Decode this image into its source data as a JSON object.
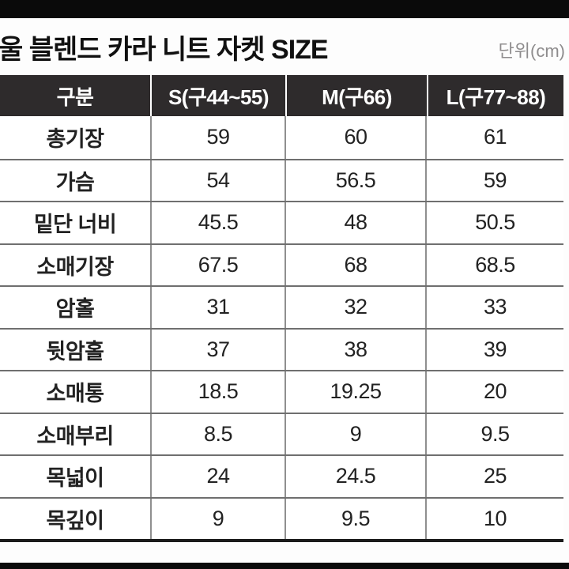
{
  "header": {
    "title": "울 블렌드 카라 니트 자켓 SIZE",
    "unit_label": "단위(cm)"
  },
  "chart_data": {
    "type": "table",
    "title": "울 블렌드 카라 니트 자켓 SIZE",
    "unit": "cm",
    "columns": [
      "구분",
      "S(구44~55)",
      "M(구66)",
      "L(구77~88)"
    ],
    "rows": [
      {
        "label": "총기장",
        "values": [
          "59",
          "60",
          "61"
        ]
      },
      {
        "label": "가슴",
        "values": [
          "54",
          "56.5",
          "59"
        ]
      },
      {
        "label": "밑단 너비",
        "values": [
          "45.5",
          "48",
          "50.5"
        ]
      },
      {
        "label": "소매기장",
        "values": [
          "67.5",
          "68",
          "68.5"
        ]
      },
      {
        "label": "암홀",
        "values": [
          "31",
          "32",
          "33"
        ]
      },
      {
        "label": "뒷암홀",
        "values": [
          "37",
          "38",
          "39"
        ]
      },
      {
        "label": "소매통",
        "values": [
          "18.5",
          "19.25",
          "20"
        ]
      },
      {
        "label": "소매부리",
        "values": [
          "8.5",
          "9",
          "9.5"
        ]
      },
      {
        "label": "목넓이",
        "values": [
          "24",
          "24.5",
          "25"
        ]
      },
      {
        "label": "목깊이",
        "values": [
          "9",
          "9.5",
          "10"
        ]
      }
    ]
  },
  "colors": {
    "letterbox": "#0a0a0a",
    "header_bg": "#2e2b2c",
    "header_text": "#ffffff",
    "grid_h": "#6f6f6f",
    "grid_v": "#8f8f8f",
    "table_bottom": "#1b1b1b",
    "title_text": "#111111",
    "unit_text": "#8e8c8d",
    "cell_text": "#222222"
  }
}
